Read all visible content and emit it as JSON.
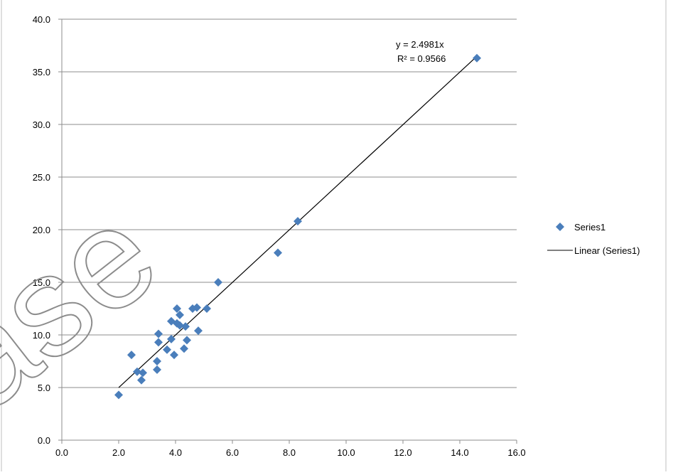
{
  "chart_data": {
    "type": "scatter",
    "xlim": [
      0,
      16
    ],
    "ylim": [
      0,
      40
    ],
    "x_ticks": [
      "0.0",
      "2.0",
      "4.0",
      "6.0",
      "8.0",
      "10.0",
      "12.0",
      "14.0",
      "16.0"
    ],
    "y_ticks": [
      "0.0",
      "5.0",
      "10.0",
      "15.0",
      "20.0",
      "25.0",
      "30.0",
      "35.0",
      "40.0"
    ],
    "grid": "horizontal",
    "legend_position": "right",
    "series": [
      {
        "name": "Series1",
        "marker": "diamond",
        "color": "#4a7ebb",
        "points": [
          {
            "x": 2.0,
            "y": 4.3
          },
          {
            "x": 2.45,
            "y": 8.1
          },
          {
            "x": 2.65,
            "y": 6.5
          },
          {
            "x": 2.8,
            "y": 5.7
          },
          {
            "x": 2.85,
            "y": 6.4
          },
          {
            "x": 3.35,
            "y": 7.5
          },
          {
            "x": 3.35,
            "y": 6.7
          },
          {
            "x": 3.4,
            "y": 9.3
          },
          {
            "x": 3.4,
            "y": 10.1
          },
          {
            "x": 3.7,
            "y": 8.6
          },
          {
            "x": 3.85,
            "y": 9.6
          },
          {
            "x": 3.85,
            "y": 11.3
          },
          {
            "x": 3.95,
            "y": 8.1
          },
          {
            "x": 4.05,
            "y": 12.5
          },
          {
            "x": 4.05,
            "y": 11.1
          },
          {
            "x": 4.15,
            "y": 11.9
          },
          {
            "x": 4.15,
            "y": 10.9
          },
          {
            "x": 4.3,
            "y": 8.7
          },
          {
            "x": 4.35,
            "y": 10.8
          },
          {
            "x": 4.4,
            "y": 9.5
          },
          {
            "x": 4.6,
            "y": 12.5
          },
          {
            "x": 4.75,
            "y": 12.6
          },
          {
            "x": 4.8,
            "y": 10.4
          },
          {
            "x": 5.1,
            "y": 12.5
          },
          {
            "x": 5.5,
            "y": 15.0
          },
          {
            "x": 7.6,
            "y": 17.8
          },
          {
            "x": 8.3,
            "y": 20.8
          },
          {
            "x": 14.6,
            "y": 36.3
          }
        ]
      }
    ],
    "trendline": {
      "name": "Linear (Series1)",
      "type": "linear",
      "slope": 2.4981,
      "intercept": 0,
      "x_range": [
        2.0,
        14.6
      ],
      "color": "#000000",
      "equation": "y = 2.4981x",
      "r_squared": "R² = 0.9566"
    },
    "watermark": {
      "text": "ase",
      "style": "outline"
    }
  }
}
